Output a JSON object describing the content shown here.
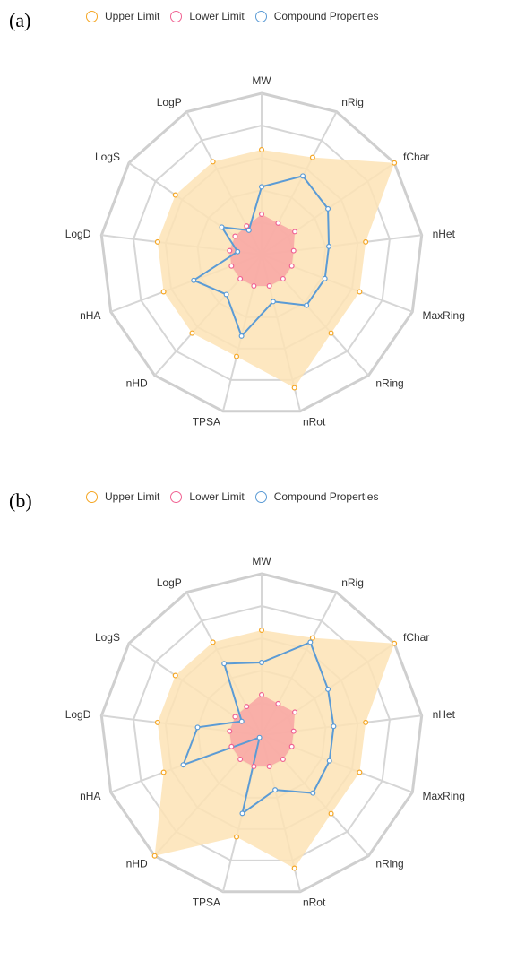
{
  "chart_data": [
    {
      "type": "radar",
      "panel_label": "(a)",
      "axes": [
        "MW",
        "nRig",
        "fChar",
        "nHet",
        "MaxRing",
        "nRing",
        "nRot",
        "TPSA",
        "nHD",
        "nHA",
        "LogD",
        "LogS",
        "LogP"
      ],
      "rmax": 1.0,
      "rings": 5,
      "legend": {
        "position": "top"
      },
      "series": [
        {
          "name": "Upper Limit",
          "color": "#f5a623",
          "fill": "#fde3b5",
          "values": [
            0.65,
            0.68,
            1.0,
            0.65,
            0.65,
            0.65,
            0.85,
            0.65,
            0.65,
            0.65,
            0.65,
            0.65,
            0.65
          ]
        },
        {
          "name": "Lower Limit",
          "color": "#f06292",
          "fill": "#f8a5a3",
          "values": [
            0.25,
            0.22,
            0.25,
            0.2,
            0.2,
            0.2,
            0.2,
            0.2,
            0.2,
            0.2,
            0.2,
            0.2,
            0.2
          ]
        },
        {
          "name": "Compound Properties",
          "color": "#5b9bd5",
          "values": [
            0.42,
            0.55,
            0.5,
            0.42,
            0.42,
            0.42,
            0.3,
            0.52,
            0.33,
            0.45,
            0.15,
            0.3,
            0.17
          ]
        }
      ]
    },
    {
      "type": "radar",
      "panel_label": "(b)",
      "axes": [
        "MW",
        "nRig",
        "fChar",
        "nHet",
        "MaxRing",
        "nRing",
        "nRot",
        "TPSA",
        "nHD",
        "nHA",
        "LogD",
        "LogS",
        "LogP"
      ],
      "rmax": 1.0,
      "rings": 5,
      "legend": {
        "position": "top"
      },
      "series": [
        {
          "name": "Upper Limit",
          "color": "#f5a623",
          "fill": "#fde3b5",
          "values": [
            0.65,
            0.68,
            1.0,
            0.65,
            0.65,
            0.65,
            0.85,
            0.65,
            1.0,
            0.65,
            0.65,
            0.65,
            0.65
          ]
        },
        {
          "name": "Lower Limit",
          "color": "#f06292",
          "fill": "#f8a5a3",
          "values": [
            0.25,
            0.22,
            0.25,
            0.2,
            0.2,
            0.2,
            0.2,
            0.2,
            0.2,
            0.2,
            0.2,
            0.2,
            0.2
          ]
        },
        {
          "name": "Compound Properties",
          "color": "#5b9bd5",
          "values": [
            0.45,
            0.65,
            0.5,
            0.45,
            0.45,
            0.48,
            0.35,
            0.5,
            0.02,
            0.52,
            0.4,
            0.15,
            0.5
          ]
        }
      ]
    }
  ]
}
